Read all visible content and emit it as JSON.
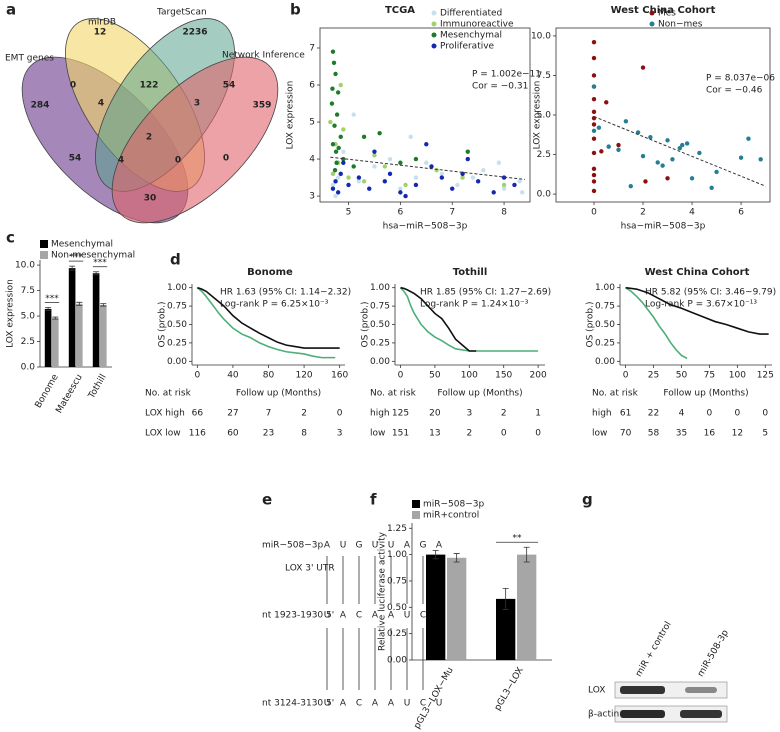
{
  "panels": [
    "a",
    "b",
    "c",
    "d",
    "e",
    "f",
    "g"
  ],
  "venn": {
    "sets": [
      "EMT genes",
      "mirDB",
      "TargetScan",
      "Network Inference"
    ],
    "regions": [
      12,
      2236,
      284,
      359,
      0,
      122,
      54,
      4,
      3,
      2,
      54,
      4,
      0,
      0,
      30
    ]
  },
  "chart_data": [
    {
      "type": "scatter",
      "title": "TCGA",
      "x_label": "hsa−miR−508−3p",
      "y_label": "LOX expression",
      "xlim": [
        4.45,
        8.5
      ],
      "ylim": [
        2.84,
        7.54
      ],
      "xticks": [
        5,
        6,
        7,
        8
      ],
      "yticks": [
        3,
        4,
        5,
        6,
        7
      ],
      "annotations": [
        "P = 1.002e−11",
        "Cor = −0.31"
      ],
      "trendline": {
        "x": [
          4.65,
          8.4
        ],
        "y": [
          4.05,
          3.45
        ]
      },
      "series": [
        {
          "name": "Differentiated",
          "color": "#c6e0ef",
          "x": [
            4.7,
            4.8,
            5.2,
            5.5,
            6.0,
            6.3,
            6.8,
            7.1,
            7.6,
            8.0,
            8.3,
            4.9,
            5.8,
            6.5,
            7.4,
            8.35,
            5.1,
            4.75,
            6.2,
            7.9
          ],
          "values": [
            3.3,
            3.5,
            3.4,
            3.8,
            3.2,
            3.5,
            3.6,
            3.3,
            3.7,
            3.2,
            3.4,
            4.2,
            4.0,
            3.9,
            3.5,
            3.1,
            5.2,
            3.0,
            4.6,
            3.9
          ]
        },
        {
          "name": "Immunoreactive",
          "color": "#9fd26a",
          "x": [
            4.7,
            4.8,
            4.75,
            5.0,
            5.3,
            5.7,
            6.1,
            4.9,
            6.7,
            7.2,
            4.65,
            5.5,
            8.0,
            4.85
          ],
          "values": [
            3.6,
            3.9,
            4.4,
            3.5,
            3.4,
            3.8,
            3.3,
            4.8,
            3.7,
            3.5,
            5.0,
            4.1,
            3.3,
            6.0
          ]
        },
        {
          "name": "Mesenchymal",
          "color": "#1e7b2a",
          "x": [
            4.7,
            4.72,
            4.75,
            4.8,
            4.68,
            4.78,
            4.73,
            4.85,
            4.7,
            4.76,
            4.9,
            5.1,
            5.6,
            6.3,
            7.3,
            4.69,
            4.81,
            4.74,
            4.77,
            5.3,
            6.0
          ],
          "values": [
            6.9,
            6.6,
            6.3,
            5.8,
            5.5,
            5.2,
            4.9,
            4.6,
            4.4,
            4.2,
            4.0,
            3.8,
            4.7,
            4.0,
            4.2,
            5.9,
            4.3,
            3.7,
            3.9,
            4.6,
            3.9
          ]
        },
        {
          "name": "Proliferative",
          "color": "#1428b4",
          "x": [
            4.7,
            4.75,
            4.8,
            4.85,
            5.0,
            5.2,
            5.4,
            5.7,
            6.0,
            6.3,
            6.5,
            6.8,
            7.0,
            7.2,
            7.5,
            7.8,
            8.0,
            8.2,
            5.5,
            6.1,
            6.6,
            4.9,
            7.3,
            5.8
          ],
          "values": [
            3.2,
            3.4,
            3.1,
            3.6,
            3.3,
            3.5,
            3.2,
            3.4,
            3.1,
            3.3,
            4.4,
            3.5,
            3.2,
            3.6,
            3.4,
            3.1,
            3.5,
            3.3,
            4.2,
            3.0,
            3.8,
            3.9,
            4.0,
            3.6
          ]
        }
      ]
    },
    {
      "type": "scatter",
      "title": "West China Cohort",
      "x_label": "hsa−miR−508−3p",
      "y_label": "LOX expression",
      "xlim": [
        -1.55,
        7.18
      ],
      "ylim": [
        -0.5,
        10.5
      ],
      "xticks": [
        0,
        2,
        4,
        6
      ],
      "yticks": [
        {
          "value": 0,
          "label": "0.0"
        },
        {
          "value": 2.5,
          "label": "2.5"
        },
        {
          "value": 5,
          "label": "5.0"
        },
        {
          "value": 7.5,
          "label": "7.5"
        },
        {
          "value": 10,
          "label": "10.0"
        }
      ],
      "annotations": [
        "P = 8.037e−06",
        "Cor = −0.46"
      ],
      "trendline": {
        "x": [
          0,
          7
        ],
        "y": [
          4.9,
          0.5
        ]
      },
      "series": [
        {
          "name": "Mes",
          "color": "#8b1010",
          "x": [
            0,
            0,
            0,
            0,
            0,
            0,
            0,
            0,
            0,
            0,
            0,
            0,
            0.5,
            1.0,
            2.0,
            2.1,
            3.0,
            0.3,
            0,
            0
          ],
          "values": [
            9.6,
            8.6,
            7.5,
            6.8,
            6.0,
            5.2,
            4.4,
            3.5,
            2.6,
            1.6,
            0.8,
            0.2,
            5.8,
            3.1,
            8.0,
            0.8,
            1.0,
            2.7,
            4.8,
            1.2
          ]
        },
        {
          "name": "Non−mes",
          "color": "#247f94",
          "x": [
            0,
            0,
            0.2,
            0.6,
            1.0,
            1.3,
            1.8,
            2.0,
            2.3,
            2.6,
            3.0,
            3.2,
            3.5,
            3.8,
            4.0,
            4.3,
            4.8,
            5.0,
            6.0,
            6.3,
            6.8,
            2.8,
            1.5,
            3.6
          ],
          "values": [
            6.8,
            4.0,
            4.2,
            3.0,
            2.8,
            4.6,
            3.9,
            2.4,
            3.6,
            2.0,
            3.4,
            2.2,
            2.9,
            3.2,
            1.0,
            2.6,
            0.4,
            1.4,
            2.3,
            3.5,
            2.2,
            1.8,
            0.5,
            3.1
          ]
        }
      ]
    },
    {
      "type": "bar",
      "y_label": "LOX expression",
      "categories": [
        "Bonome",
        "Mateescu",
        "Tothill"
      ],
      "ylim": [
        0,
        10.5
      ],
      "yticks": [
        {
          "value": 0,
          "label": "0.0"
        },
        {
          "value": 2.5,
          "label": "2.5"
        },
        {
          "value": 5,
          "label": "5.0"
        },
        {
          "value": 7.5,
          "label": "7.5"
        },
        {
          "value": 10,
          "label": "10.0"
        }
      ],
      "significance": [
        "***",
        "***",
        "***"
      ],
      "series": [
        {
          "name": "Mesenchymal",
          "color": "#000000",
          "values": [
            5.7,
            9.7,
            9.2
          ],
          "errors": [
            0.15,
            0.2,
            0.15
          ]
        },
        {
          "name": "Non-mesenchymal",
          "color": "#a6a6a6",
          "values": [
            4.8,
            6.2,
            6.1
          ],
          "errors": [
            0.1,
            0.15,
            0.12
          ]
        }
      ]
    },
    {
      "type": "line",
      "title": "Bonome",
      "y_label": "OS (prob.)",
      "x_label": "Follow up (Months)",
      "xlim": [
        -6,
        166
      ],
      "ylim": [
        -0.05,
        1.05
      ],
      "xticks": [
        0,
        40,
        80,
        120,
        160
      ],
      "yticks": [
        {
          "value": 0,
          "label": "0.00"
        },
        {
          "value": 0.25,
          "label": "0.25"
        },
        {
          "value": 0.5,
          "label": "0.50"
        },
        {
          "value": 0.75,
          "label": "0.75"
        },
        {
          "value": 1,
          "label": "1.00"
        }
      ],
      "annotations": [
        "HR 1.63 (95% CI: 1.14~2.32)",
        "Log-rank P = 6.25×10⁻³"
      ],
      "series": [
        {
          "color": "#4caf78",
          "x": [
            0,
            5,
            10,
            15,
            20,
            25,
            30,
            40,
            50,
            60,
            70,
            80,
            90,
            100,
            120,
            130,
            140,
            155
          ],
          "values": [
            1,
            0.95,
            0.88,
            0.8,
            0.72,
            0.64,
            0.57,
            0.45,
            0.37,
            0.32,
            0.25,
            0.2,
            0.16,
            0.13,
            0.1,
            0.07,
            0.05,
            0.05
          ]
        },
        {
          "color": "#111111",
          "x": [
            0,
            5,
            10,
            20,
            30,
            40,
            50,
            60,
            70,
            80,
            90,
            100,
            110,
            120,
            140,
            160
          ],
          "values": [
            1,
            0.98,
            0.95,
            0.85,
            0.75,
            0.62,
            0.52,
            0.45,
            0.38,
            0.32,
            0.26,
            0.22,
            0.2,
            0.18,
            0.18,
            0.18
          ]
        }
      ],
      "risk_table": {
        "title": "No. at risk",
        "rows": [
          {
            "label": "LOX high",
            "color": "#3a9a5e",
            "counts": [
              66,
              27,
              7,
              2,
              0
            ]
          },
          {
            "label": "LOX low",
            "color": "#111111",
            "counts": [
              116,
              60,
              23,
              8,
              3
            ]
          }
        ]
      }
    },
    {
      "type": "line",
      "title": "Tothill",
      "y_label": "OS (prob.)",
      "x_label": "Follow up (Months)",
      "xlim": [
        -8,
        210
      ],
      "ylim": [
        -0.05,
        1.05
      ],
      "xticks": [
        0,
        50,
        100,
        150,
        200
      ],
      "yticks": [
        {
          "value": 0,
          "label": "0.00"
        },
        {
          "value": 0.25,
          "label": "0.25"
        },
        {
          "value": 0.5,
          "label": "0.50"
        },
        {
          "value": 0.75,
          "label": "0.75"
        },
        {
          "value": 1,
          "label": "1.00"
        }
      ],
      "annotations": [
        "HR 1.85 (95% CI: 1.27~2.69)",
        "Log-rank P = 1.24×10⁻³"
      ],
      "series": [
        {
          "color": "#4caf78",
          "x": [
            0,
            5,
            10,
            15,
            20,
            30,
            40,
            50,
            60,
            70,
            80,
            100,
            120,
            150,
            200
          ],
          "values": [
            1,
            0.95,
            0.88,
            0.75,
            0.65,
            0.5,
            0.4,
            0.33,
            0.28,
            0.22,
            0.17,
            0.14,
            0.14,
            0.14,
            0.14
          ]
        },
        {
          "color": "#111111",
          "x": [
            0,
            5,
            10,
            20,
            30,
            40,
            50,
            60,
            70,
            80,
            90,
            100,
            110
          ],
          "values": [
            1,
            0.99,
            0.97,
            0.92,
            0.85,
            0.75,
            0.65,
            0.58,
            0.45,
            0.3,
            0.22,
            0.14,
            0.14
          ]
        }
      ],
      "risk_table": {
        "title": "No. at risk",
        "rows": [
          {
            "label": "high",
            "color": "#3a9a5e",
            "counts": [
              125,
              20,
              3,
              2,
              1
            ]
          },
          {
            "label": "low",
            "color": "#111111",
            "counts": [
              151,
              13,
              2,
              0,
              0
            ]
          }
        ]
      }
    },
    {
      "type": "line",
      "title": "West China Cohort",
      "y_label": "OS (prob.)",
      "x_label": "Follow up (Months)",
      "xlim": [
        -5,
        131
      ],
      "ylim": [
        -0.05,
        1.05
      ],
      "xticks": [
        0,
        25,
        50,
        75,
        100,
        125
      ],
      "yticks": [
        {
          "value": 0,
          "label": "0.00"
        },
        {
          "value": 0.25,
          "label": "0.25"
        },
        {
          "value": 0.5,
          "label": "0.50"
        },
        {
          "value": 0.75,
          "label": "0.75"
        },
        {
          "value": 1,
          "label": "1.00"
        }
      ],
      "annotations": [
        "HR 5.82 (95% CI: 3.46~9.79)",
        "Log-rank P = 3.67×10⁻¹³"
      ],
      "series": [
        {
          "color": "#4caf78",
          "x": [
            0,
            5,
            10,
            15,
            20,
            25,
            30,
            35,
            40,
            45,
            50,
            55
          ],
          "values": [
            1,
            0.95,
            0.88,
            0.8,
            0.7,
            0.6,
            0.48,
            0.38,
            0.26,
            0.16,
            0.08,
            0.04
          ]
        },
        {
          "color": "#111111",
          "x": [
            0,
            10,
            20,
            30,
            40,
            50,
            60,
            70,
            80,
            90,
            100,
            110,
            120,
            128
          ],
          "values": [
            1,
            0.98,
            0.93,
            0.85,
            0.77,
            0.72,
            0.66,
            0.6,
            0.54,
            0.5,
            0.45,
            0.4,
            0.37,
            0.37
          ]
        }
      ],
      "risk_table": {
        "title": "No. at risk",
        "rows": [
          {
            "label": "high",
            "color": "#3a9a5e",
            "counts": [
              61,
              22,
              4,
              0,
              0,
              0
            ]
          },
          {
            "label": "low",
            "color": "#111111",
            "counts": [
              70,
              58,
              35,
              16,
              12,
              5
            ]
          }
        ]
      }
    },
    {
      "type": "bar",
      "y_label": "Relative luciferase activity",
      "categories": [
        "pGL3−LOX−Mu",
        "pGL3−LOX"
      ],
      "ylim": [
        0,
        1.3
      ],
      "yticks": [
        {
          "value": 0,
          "label": "0.00"
        },
        {
          "value": 0.25,
          "label": "0.25"
        },
        {
          "value": 0.5,
          "label": "0.50"
        },
        {
          "value": 0.75,
          "label": "0.75"
        },
        {
          "value": 1,
          "label": "1.00"
        },
        {
          "value": 1.25,
          "label": "1.25"
        }
      ],
      "significance": [
        null,
        "**"
      ],
      "series": [
        {
          "name": "miR−508−3p",
          "color": "#000000",
          "values": [
            1.0,
            0.58
          ],
          "errors": [
            0.04,
            0.1
          ]
        },
        {
          "name": "miR+control",
          "color": "#a6a6a6",
          "values": [
            0.97,
            1.0
          ],
          "errors": [
            0.04,
            0.07
          ]
        }
      ]
    }
  ],
  "alignment": {
    "target_label": "LOX 3' UTR",
    "rows": [
      {
        "label": "miR−508−3p",
        "bases": [
          "A",
          "U",
          "G",
          "U",
          "U",
          "A",
          "G",
          "A"
        ]
      },
      {
        "label": "nt 1923-1930 5'",
        "bases": [
          "U",
          "A",
          "C",
          "A",
          "A",
          "U",
          "C",
          "U"
        ]
      },
      {
        "label": "nt 3124-3130 5'",
        "bases": [
          "U",
          "A",
          "C",
          "A",
          "A",
          "U",
          "C",
          "U"
        ]
      }
    ]
  },
  "blot": {
    "lanes": [
      "miR + control",
      "miR-508-3p"
    ],
    "rows": [
      "LOX",
      "β-actin"
    ]
  }
}
